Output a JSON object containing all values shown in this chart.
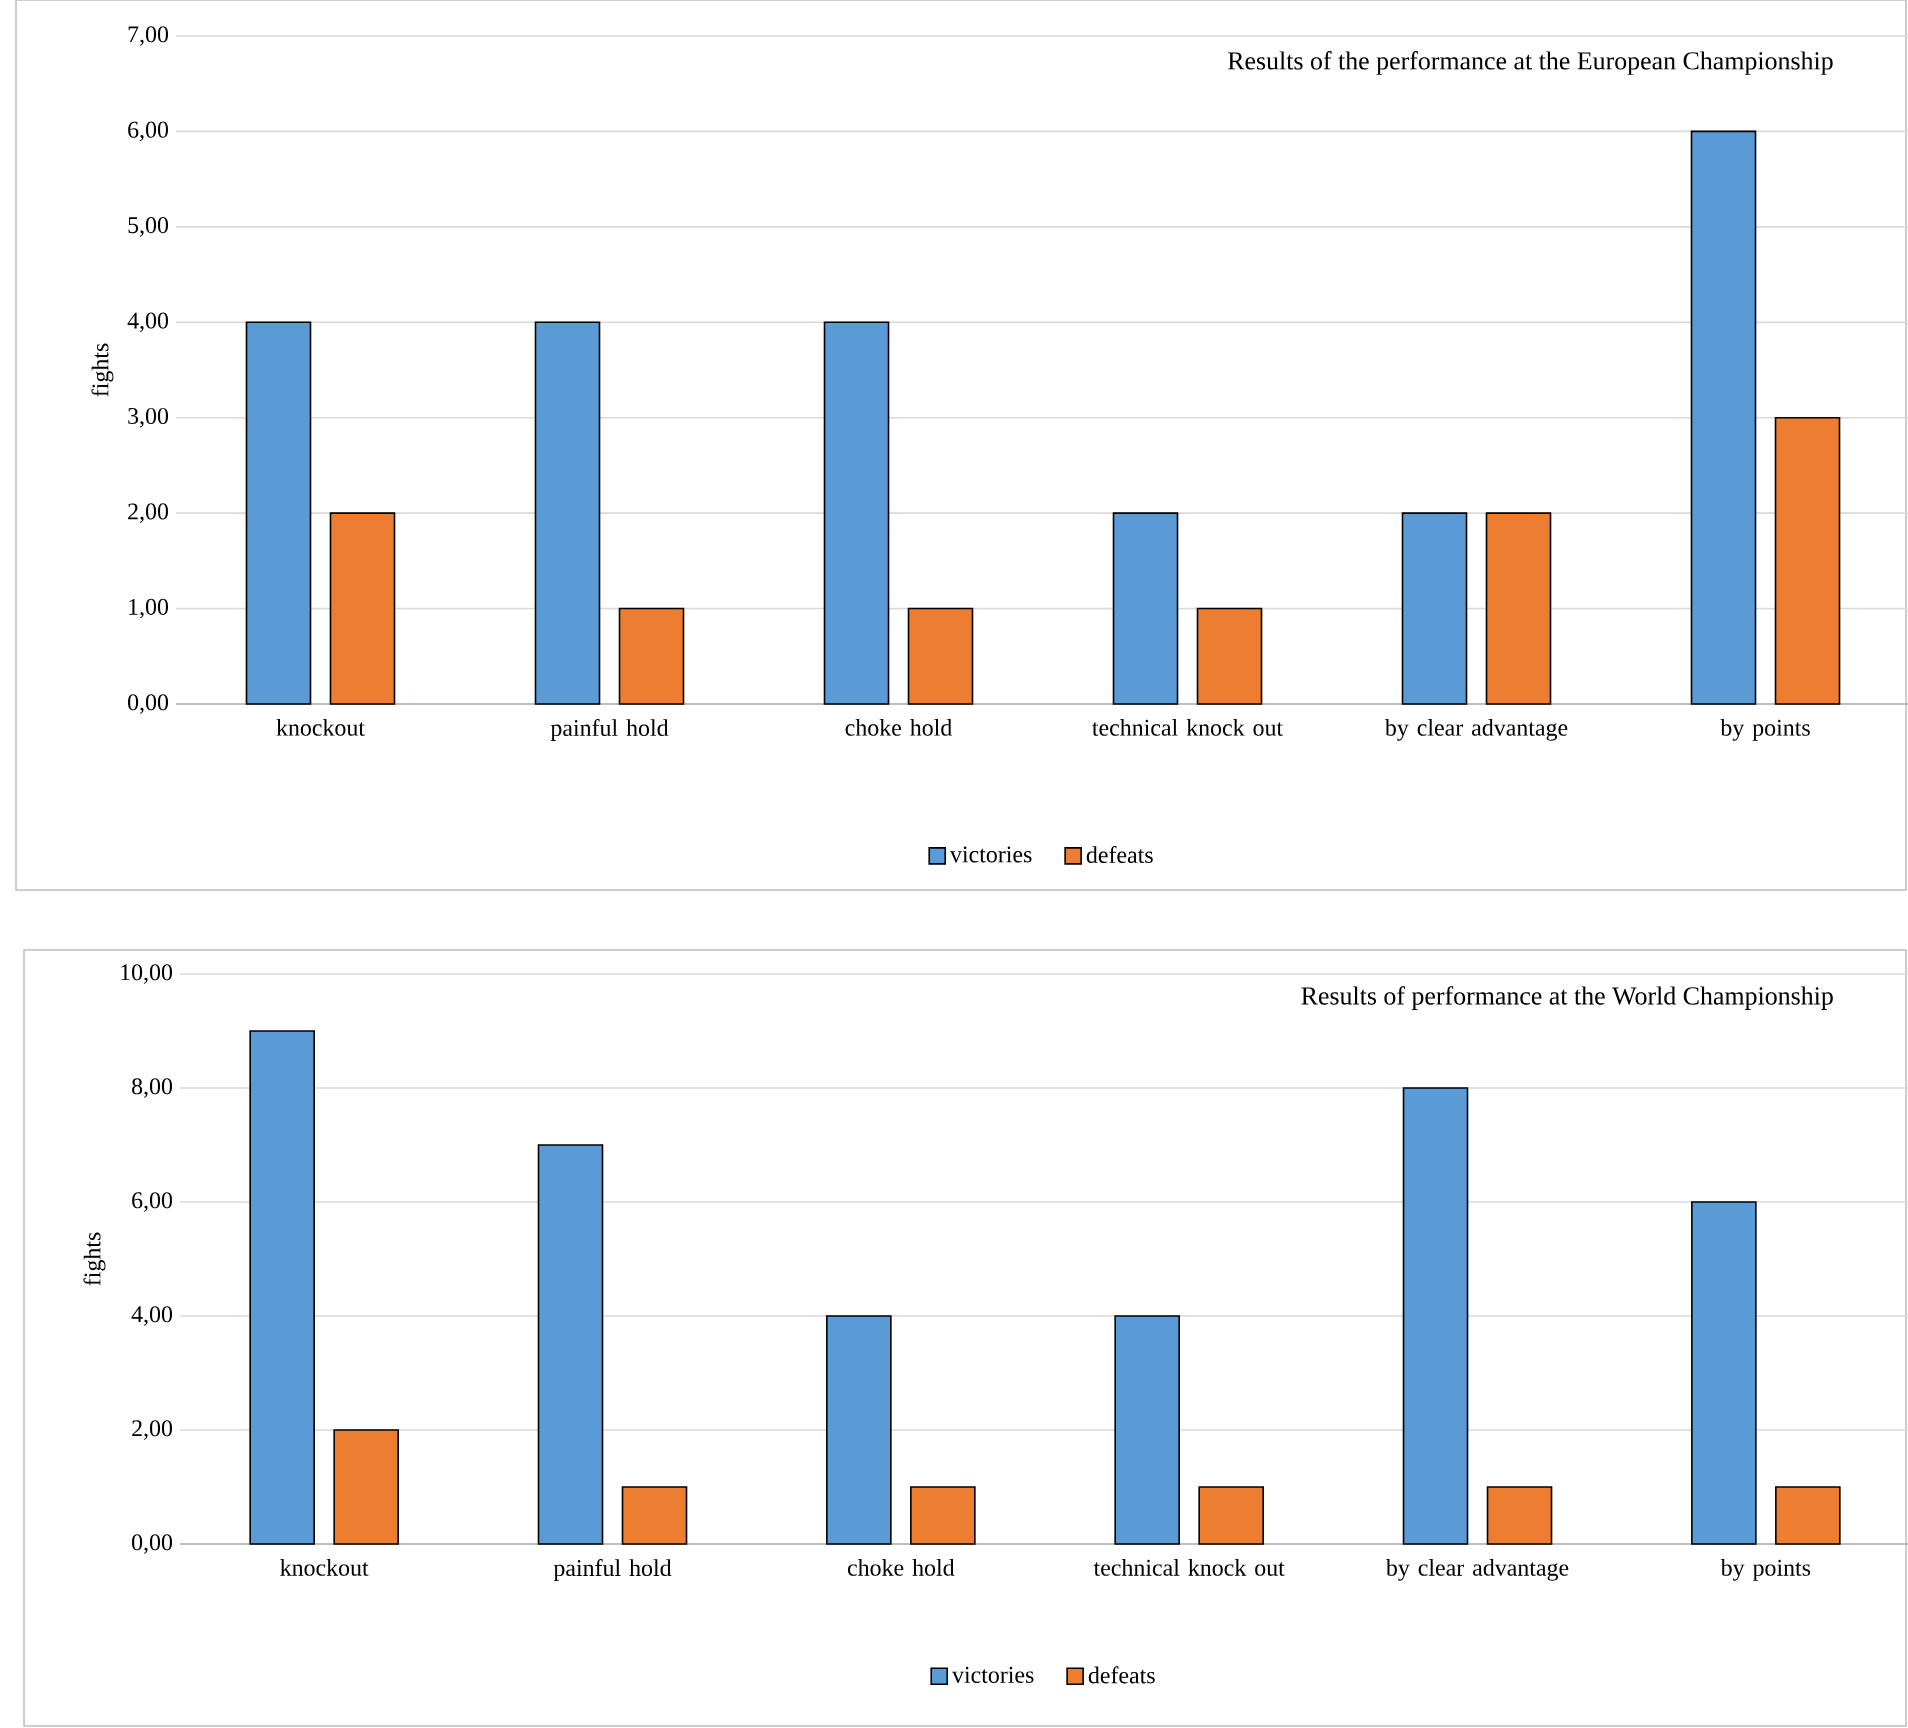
{
  "chart_data": [
    {
      "type": "bar",
      "title": "Results of the performance at the European Championship",
      "ylabel": "fights",
      "categories": [
        "knockout",
        "painful hold",
        "choke hold",
        "technical knock out",
        "by clear advantage",
        "by points"
      ],
      "series": [
        {
          "name": "victories",
          "color": "#5b9bd5",
          "values": [
            4,
            4,
            4,
            2,
            2,
            6
          ]
        },
        {
          "name": "defeats",
          "color": "#ed7d31",
          "values": [
            2,
            1,
            1,
            1,
            2,
            3
          ]
        }
      ],
      "ylim": [
        0,
        7
      ],
      "yticks": [
        {
          "value": 0,
          "label": "0,00"
        },
        {
          "value": 1,
          "label": "1,00"
        },
        {
          "value": 2,
          "label": "2,00"
        },
        {
          "value": 3,
          "label": "3,00"
        },
        {
          "value": 4,
          "label": "4,00"
        },
        {
          "value": 5,
          "label": "5,00"
        },
        {
          "value": 6,
          "label": "6,00"
        },
        {
          "value": 7,
          "label": "7,00"
        }
      ],
      "grid": "y",
      "legend": "bottom"
    },
    {
      "type": "bar",
      "title": "Results of performance at the World Championship",
      "ylabel": "fights",
      "categories": [
        "knockout",
        "painful hold",
        "choke hold",
        "technical knock out",
        "by clear advantage",
        "by points"
      ],
      "series": [
        {
          "name": "victories",
          "color": "#5b9bd5",
          "values": [
            9,
            7,
            4,
            4,
            8,
            6
          ]
        },
        {
          "name": "defeats",
          "color": "#ed7d31",
          "values": [
            2,
            1,
            1,
            1,
            1,
            1
          ]
        }
      ],
      "ylim": [
        0,
        10
      ],
      "yticks": [
        {
          "value": 0,
          "label": "0,00"
        },
        {
          "value": 2,
          "label": "2,00"
        },
        {
          "value": 4,
          "label": "4,00"
        },
        {
          "value": 6,
          "label": "6,00"
        },
        {
          "value": 8,
          "label": "8,00"
        },
        {
          "value": 10,
          "label": "10,00"
        }
      ],
      "grid": "y",
      "legend": "bottom"
    }
  ]
}
